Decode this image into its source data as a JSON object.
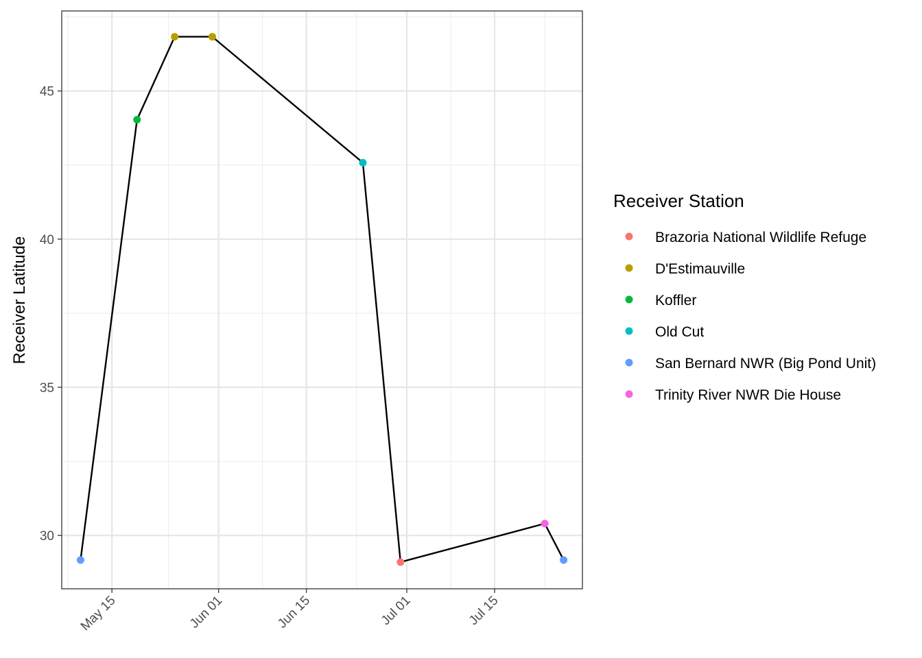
{
  "chart_data": {
    "type": "line",
    "title": "",
    "xlabel": "",
    "ylabel": "Receiver Latitude",
    "x_axis": {
      "type": "date",
      "range": [
        "2024-05-07",
        "2024-07-29"
      ],
      "ticks": [
        {
          "date": "2024-05-15",
          "label": "May 15"
        },
        {
          "date": "2024-06-01",
          "label": "Jun 01"
        },
        {
          "date": "2024-06-15",
          "label": "Jun 15"
        },
        {
          "date": "2024-07-01",
          "label": "Jul 01"
        },
        {
          "date": "2024-07-15",
          "label": "Jul 15"
        }
      ],
      "minor_ticks": [
        "2024-05-08",
        "2024-05-24",
        "2024-06-08",
        "2024-06-23",
        "2024-07-08",
        "2024-07-23"
      ]
    },
    "y_axis": {
      "range": [
        28.2,
        47.7
      ],
      "ticks": [
        {
          "value": 30,
          "label": "30"
        },
        {
          "value": 35,
          "label": "35"
        },
        {
          "value": 40,
          "label": "40"
        },
        {
          "value": 45,
          "label": "45"
        }
      ],
      "minor_ticks": [
        32.5,
        37.5,
        42.5,
        47.5
      ]
    },
    "grid": true,
    "legend": {
      "title": "Receiver Station",
      "placement": "right",
      "entries": [
        {
          "label": "Brazoria National Wildlife Refuge",
          "color": "#F8766D"
        },
        {
          "label": "D'Estimauville",
          "color": "#B79F00"
        },
        {
          "label": "Koffler",
          "color": "#00BA38"
        },
        {
          "label": "Old Cut",
          "color": "#00BFC4"
        },
        {
          "label": "San Bernard NWR (Big Pond Unit)",
          "color": "#619CFF"
        },
        {
          "label": "Trinity River NWR Die House",
          "color": "#F564E3"
        }
      ]
    },
    "line_color": "#000000",
    "points": [
      {
        "date": "2024-05-10",
        "y": 29.17,
        "station": "San Bernard NWR (Big Pond Unit)"
      },
      {
        "date": "2024-05-19",
        "y": 44.03,
        "station": "Koffler"
      },
      {
        "date": "2024-05-25",
        "y": 46.83,
        "station": "D'Estimauville"
      },
      {
        "date": "2024-05-31",
        "y": 46.83,
        "station": "D'Estimauville"
      },
      {
        "date": "2024-05-31",
        "y": 46.83,
        "station": "D'Estimauville"
      },
      {
        "date": "2024-06-24",
        "y": 42.58,
        "station": "Old Cut"
      },
      {
        "date": "2024-06-30",
        "y": 29.1,
        "station": "Brazoria National Wildlife Refuge"
      },
      {
        "date": "2024-07-23",
        "y": 30.4,
        "station": "Trinity River NWR Die House"
      },
      {
        "date": "2024-07-26",
        "y": 29.17,
        "station": "San Bernard NWR (Big Pond Unit)"
      }
    ]
  }
}
